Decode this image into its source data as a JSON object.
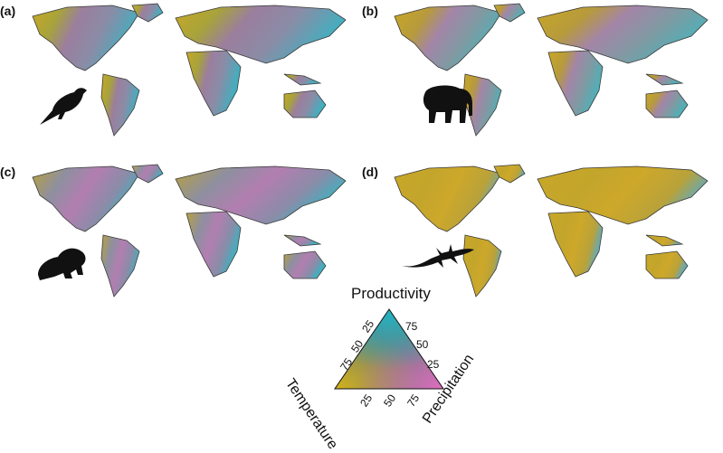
{
  "panels": [
    {
      "label": "(a)",
      "taxon_icon": "bird-icon"
    },
    {
      "label": "(b)",
      "taxon_icon": "elephant-icon"
    },
    {
      "label": "(c)",
      "taxon_icon": "frog-icon"
    },
    {
      "label": "(d)",
      "taxon_icon": "lizard-icon"
    }
  ],
  "legend": {
    "top_label": "Productivity",
    "left_label": "Temperature",
    "right_label": "Precipitation",
    "left_ticks": [
      "25",
      "50",
      "75"
    ],
    "right_ticks": [
      "75",
      "50",
      "25"
    ],
    "bottom_ticks": [
      "25",
      "50",
      "75"
    ],
    "corner_colors": {
      "top": "#1fb5c4",
      "bottom_left": "#d4b21a",
      "bottom_right": "#e06cc0"
    }
  },
  "colors": {
    "yellow": "#c9a826",
    "cyan": "#3fb0c0",
    "pink": "#c77ab5",
    "grey": "#8a8a96",
    "border": "#3a3a3a"
  }
}
